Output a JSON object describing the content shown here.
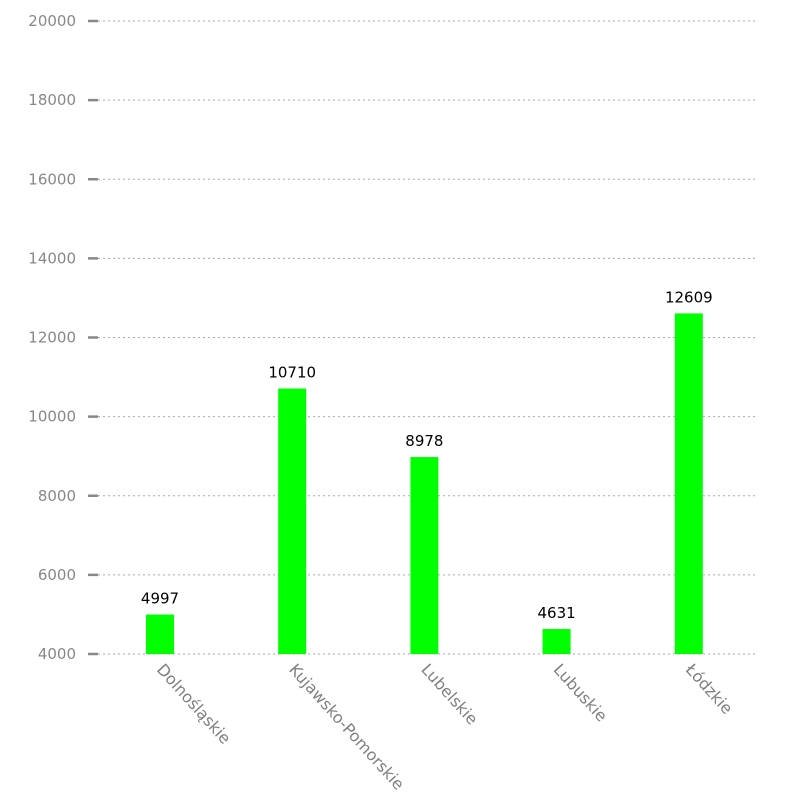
{
  "chart_data": {
    "type": "bar",
    "categories": [
      "Dolnośląskie",
      "Kujawsko-Pomorskie",
      "Lubelskie",
      "Lubuskie",
      "Łódzkie"
    ],
    "values": [
      4997,
      10710,
      8978,
      4631,
      12609
    ],
    "title": "",
    "xlabel": "",
    "ylabel": "",
    "ylim": [
      4000,
      20000
    ],
    "yticks": [
      4000,
      6000,
      8000,
      10000,
      12000,
      14000,
      16000,
      18000,
      20000
    ],
    "grid": "horizontal dotted",
    "legend": "none",
    "bar_color": "#00ff00"
  }
}
